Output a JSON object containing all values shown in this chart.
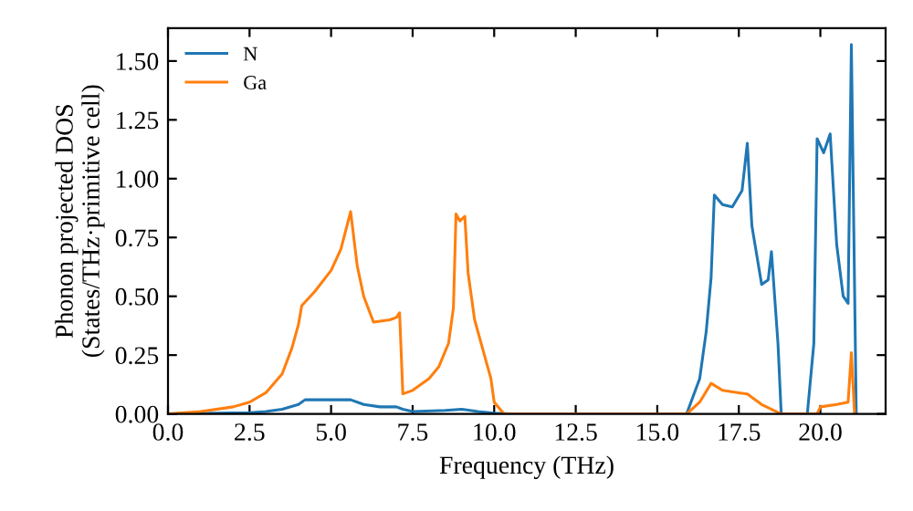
{
  "chart_data": {
    "type": "line",
    "xlabel": "Frequency (THz)",
    "ylabel": "Phonon projected DOS\n(States/THz·primitive cell)",
    "xlim": [
      0,
      22
    ],
    "ylim": [
      0,
      1.64
    ],
    "xticks": [
      {
        "value": 0,
        "label": "0.0"
      },
      2.5,
      {
        "value": 5,
        "label": "5.0"
      },
      7.5,
      {
        "value": 10,
        "label": "10.0"
      },
      12.5,
      {
        "value": 15,
        "label": "15.0"
      },
      17.5,
      {
        "value": 20,
        "label": "20.0"
      }
    ],
    "yticks": [
      {
        "value": 0,
        "label": "0.00"
      },
      0.25,
      {
        "value": 0.5,
        "label": "0.50"
      },
      0.75,
      {
        "value": 1,
        "label": "1.00"
      },
      1.25,
      {
        "value": 1.5,
        "label": "1.50"
      }
    ],
    "grid": false,
    "legend": "top left",
    "marker": "none",
    "line_style": "solid",
    "series": [
      {
        "name": "N",
        "color": "#1f77b4",
        "x": [
          0,
          2.5,
          3.0,
          3.5,
          4.0,
          4.2,
          5.0,
          5.6,
          6.0,
          6.5,
          7.0,
          7.2,
          7.5,
          8.5,
          9.0,
          9.5,
          10.0,
          10.5,
          15.9,
          16.3,
          16.5,
          16.65,
          16.75,
          17.0,
          17.3,
          17.6,
          17.76,
          17.9,
          18.2,
          18.4,
          18.5,
          18.7,
          18.8,
          19.6,
          19.8,
          19.9,
          20.1,
          20.3,
          20.5,
          20.7,
          20.85,
          20.95,
          21.1
        ],
        "values": [
          0,
          0.005,
          0.01,
          0.02,
          0.04,
          0.06,
          0.06,
          0.06,
          0.04,
          0.03,
          0.03,
          0.02,
          0.01,
          0.015,
          0.02,
          0.01,
          0.003,
          0,
          0,
          0.15,
          0.35,
          0.58,
          0.93,
          0.89,
          0.88,
          0.95,
          1.15,
          0.8,
          0.55,
          0.57,
          0.69,
          0.3,
          0,
          0,
          0.3,
          1.17,
          1.11,
          1.19,
          0.72,
          0.5,
          0.47,
          1.57,
          0
        ]
      },
      {
        "name": "Ga",
        "color": "#ff7f0e",
        "x": [
          0,
          1,
          2,
          2.5,
          3,
          3.5,
          3.8,
          4.0,
          4.1,
          4.5,
          5.0,
          5.3,
          5.6,
          5.8,
          6.0,
          6.3,
          6.8,
          7.0,
          7.1,
          7.2,
          7.5,
          8.0,
          8.3,
          8.6,
          8.75,
          8.83,
          8.95,
          9.1,
          9.2,
          9.4,
          9.7,
          9.9,
          10.0,
          10.3,
          15.9,
          16.3,
          16.65,
          17.0,
          17.5,
          17.76,
          18.2,
          18.8,
          19.9,
          20.0,
          20.5,
          20.85,
          20.95,
          21.05
        ],
        "values": [
          0,
          0.01,
          0.03,
          0.05,
          0.09,
          0.17,
          0.28,
          0.38,
          0.46,
          0.52,
          0.61,
          0.7,
          0.86,
          0.63,
          0.5,
          0.39,
          0.4,
          0.41,
          0.43,
          0.085,
          0.1,
          0.15,
          0.2,
          0.3,
          0.45,
          0.85,
          0.82,
          0.84,
          0.6,
          0.4,
          0.25,
          0.15,
          0.05,
          0,
          0,
          0.05,
          0.13,
          0.1,
          0.09,
          0.085,
          0.04,
          0,
          0,
          0.03,
          0.04,
          0.05,
          0.26,
          0
        ]
      }
    ]
  }
}
